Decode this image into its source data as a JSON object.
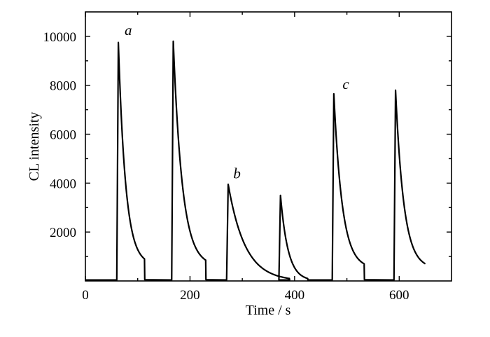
{
  "chart_data": {
    "type": "line",
    "title": "",
    "xlabel": "Time / s",
    "ylabel": "CL intensity",
    "xlim": [
      0,
      700
    ],
    "ylim": [
      0,
      11000
    ],
    "xticks": [
      0,
      200,
      400,
      600
    ],
    "yticks": [
      2000,
      4000,
      6000,
      8000,
      10000
    ],
    "grid": false,
    "legend": "none",
    "line_color": "#000000",
    "peaks": [
      {
        "start": 60,
        "top": 63,
        "peak": 9750,
        "tail_end": 113,
        "tail_value": 900,
        "drop_to": 50
      },
      {
        "start": 165,
        "top": 168,
        "peak": 9800,
        "tail_end": 230,
        "tail_value": 850,
        "drop_to": 50
      },
      {
        "start": 270,
        "top": 273,
        "peak": 3950,
        "tail_end": 390,
        "tail_value": 100,
        "drop_to": 40
      },
      {
        "start": 370,
        "top": 373,
        "peak": 3500,
        "tail_end": 425,
        "tail_value": 100,
        "drop_to": 40
      },
      {
        "start": 472,
        "top": 475,
        "peak": 7650,
        "tail_end": 533,
        "tail_value": 700,
        "drop_to": 50
      },
      {
        "start": 590,
        "top": 593,
        "peak": 7800,
        "tail_end": 650,
        "tail_value": 700,
        "drop_to": null
      }
    ],
    "annotations": [
      {
        "text": "a",
        "x": 82,
        "y": 10050
      },
      {
        "text": "b",
        "x": 290,
        "y": 4200
      },
      {
        "text": "c",
        "x": 498,
        "y": 7850
      }
    ]
  }
}
